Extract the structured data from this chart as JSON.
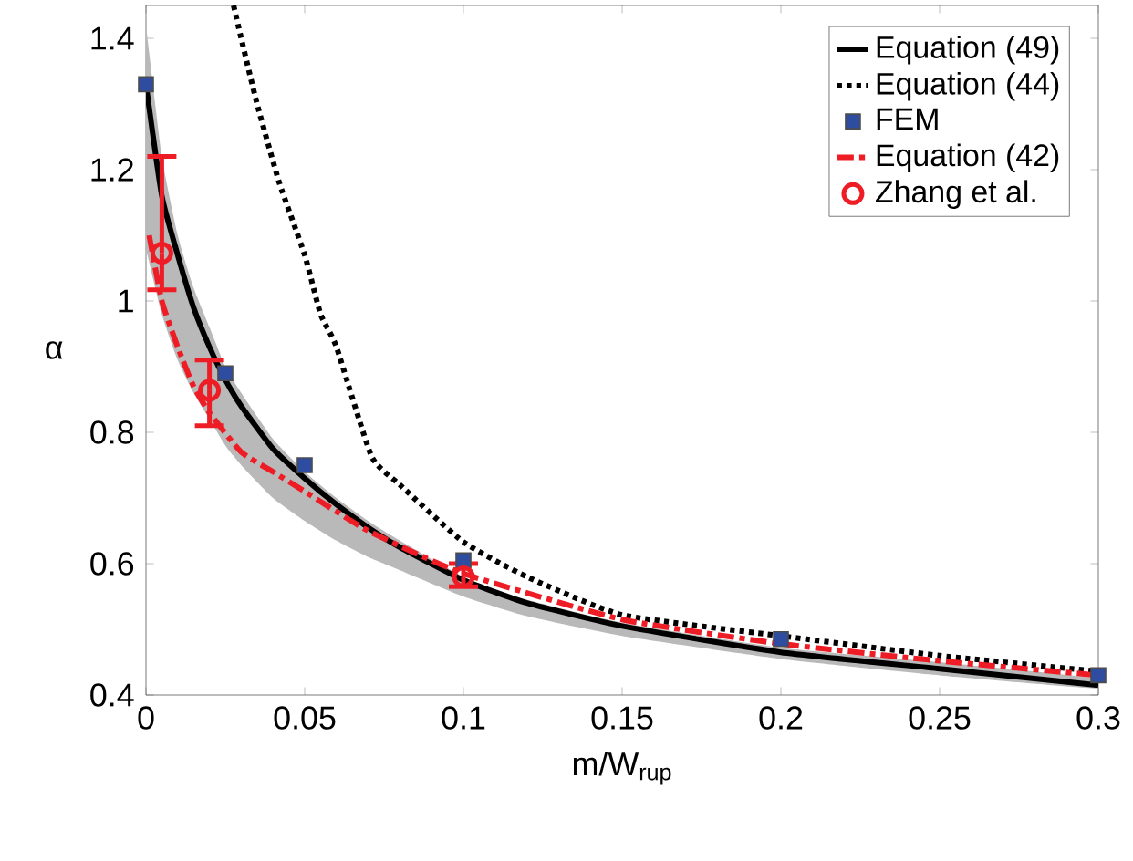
{
  "chart_data": {
    "type": "line",
    "xlabel": "m/W$_{rup}$",
    "ylabel": "α",
    "xlim": [
      0,
      0.3
    ],
    "ylim": [
      0.4,
      1.45
    ],
    "xticks": [
      0,
      0.05,
      0.1,
      0.15,
      0.2,
      0.25,
      0.3
    ],
    "yticks": [
      0.4,
      0.6,
      0.8,
      1,
      1.2,
      1.4
    ],
    "legend": "top right",
    "grid": false,
    "series": [
      {
        "name": "Equation (49)",
        "color": "#000000",
        "line_style": "solid",
        "marker": "none",
        "x": [
          0,
          0.005,
          0.01,
          0.015,
          0.02,
          0.025,
          0.03,
          0.04,
          0.05,
          0.06,
          0.07,
          0.08,
          0.1,
          0.12,
          0.15,
          0.2,
          0.25,
          0.3
        ],
        "values": [
          1.33,
          1.16,
          1.07,
          0.99,
          0.93,
          0.88,
          0.84,
          0.775,
          0.73,
          0.69,
          0.655,
          0.625,
          0.575,
          0.54,
          0.505,
          0.465,
          0.44,
          0.415
        ],
        "lower": [
          1.08,
          0.98,
          0.91,
          0.86,
          0.82,
          0.78,
          0.75,
          0.7,
          0.665,
          0.635,
          0.61,
          0.59,
          0.55,
          0.52,
          0.49,
          0.455,
          0.43,
          0.41
        ],
        "upper": [
          1.42,
          1.22,
          1.1,
          1.02,
          0.96,
          0.9,
          0.86,
          0.79,
          0.74,
          0.7,
          0.665,
          0.635,
          0.58,
          0.545,
          0.51,
          0.472,
          0.45,
          0.425
        ]
      },
      {
        "name": "Equation (44)",
        "color": "#000000",
        "line_style": "dotted",
        "marker": "none",
        "x": [
          0.0276,
          0.03,
          0.035,
          0.042,
          0.05,
          0.055,
          0.06,
          0.071,
          0.08,
          0.1,
          0.12,
          0.15,
          0.2,
          0.25,
          0.3
        ],
        "values": [
          1.45,
          1.4,
          1.3,
          1.18,
          1.07,
          0.98,
          0.93,
          0.764,
          0.72,
          0.633,
          0.58,
          0.522,
          0.49,
          0.46,
          0.436
        ]
      },
      {
        "name": "FEM",
        "type": "scatter",
        "color": "#2e4da0",
        "marker": "square",
        "x": [
          0,
          0.025,
          0.05,
          0.1,
          0.2,
          0.3
        ],
        "values": [
          1.33,
          0.89,
          0.75,
          0.605,
          0.485,
          0.43
        ]
      },
      {
        "name": "Equation (42)",
        "color": "#ee1c25",
        "line_style": "dashdot",
        "marker": "none",
        "x": [
          0.001,
          0.005,
          0.01,
          0.015,
          0.02,
          0.03,
          0.04,
          0.05,
          0.07,
          0.1,
          0.15,
          0.2,
          0.25,
          0.3
        ],
        "values": [
          1.1,
          1.0,
          0.93,
          0.87,
          0.83,
          0.77,
          0.74,
          0.71,
          0.65,
          0.585,
          0.515,
          0.478,
          0.452,
          0.43
        ]
      },
      {
        "name": "Zhang et al.",
        "type": "scatter",
        "color": "#ee1c25",
        "marker": "circle",
        "x": [
          0.005,
          0.02,
          0.1
        ],
        "values": [
          1.073,
          0.864,
          0.58
        ],
        "errors": [
          [
            1.017,
            1.22
          ],
          [
            0.81,
            0.91
          ],
          [
            0.565,
            0.6
          ]
        ]
      }
    ]
  }
}
